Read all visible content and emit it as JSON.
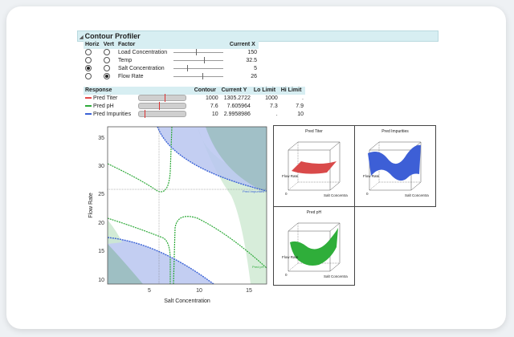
{
  "panel": {
    "title": "Contour Profiler"
  },
  "factor_table": {
    "headers": {
      "horiz": "Horiz",
      "vert": "Vert",
      "factor": "Factor",
      "current_x": "Current X"
    },
    "rows": [
      {
        "name": "Load Concentration",
        "value": "150",
        "horiz": false,
        "vert": false,
        "slider_fraction": 0.45
      },
      {
        "name": "Temp",
        "value": "32.5",
        "horiz": false,
        "vert": false,
        "slider_fraction": 0.62
      },
      {
        "name": "Salt Concentration",
        "value": "5",
        "horiz": true,
        "vert": false,
        "slider_fraction": 0.28
      },
      {
        "name": "Flow Rate",
        "value": "26",
        "horiz": false,
        "vert": true,
        "slider_fraction": 0.58
      }
    ]
  },
  "response_table": {
    "headers": {
      "response": "Response",
      "contour": "Contour",
      "current_y": "Current Y",
      "lo_limit": "Lo Limit",
      "hi_limit": "Hi Limit"
    },
    "rows": [
      {
        "name": "Pred Titer",
        "color": "#e34a4a",
        "contour": "1000",
        "current_y": "1305.2722",
        "lo": "1000",
        "hi": ".",
        "mark_fraction": 0.55
      },
      {
        "name": "Pred pH",
        "color": "#2faa3a",
        "contour": "7.6",
        "current_y": "7.605964",
        "lo": "7.3",
        "hi": "7.9",
        "mark_fraction": 0.42
      },
      {
        "name": "Pred Impurities",
        "color": "#3a62d6",
        "contour": "10",
        "current_y": "2.9958986",
        "lo": ".",
        "hi": "10",
        "mark_fraction": 0.12
      }
    ]
  },
  "contour_plot": {
    "xlabel": "Salt Concentration",
    "ylabel": "Flow Rate",
    "x_ticks": [
      "5",
      "10",
      "15"
    ],
    "y_ticks": [
      "35",
      "30",
      "25",
      "20",
      "15",
      "10"
    ],
    "x_range": [
      1,
      17
    ],
    "y_range": [
      9,
      37
    ],
    "crosshair": {
      "x": 5,
      "y": 26
    },
    "labels": {
      "pred_titer": "Pred Titer",
      "pred_ph": "Pred pH",
      "pred_impurities": "Pred Impurities"
    }
  },
  "surface_plots": [
    {
      "title": "Pred Titer",
      "color": "#d94a4a",
      "ylabel": "Flow Rate",
      "xlabel": "Salt Concentra",
      "zero": "0"
    },
    {
      "title": "Pred Impurities",
      "color": "#3d5fd6",
      "ylabel": "Flow Rate",
      "xlabel": "Salt Concentra",
      "zero": "0"
    },
    {
      "title": "Pred pH",
      "color": "#2fae3a",
      "ylabel": "Flow Rate",
      "xlabel": "Salt Concentra",
      "zero": "0"
    }
  ],
  "colors": {
    "header_bg": "#d7eef2",
    "impurity_fill": "#b9c6f0",
    "teal_fill": "#9ebfc3",
    "green_fill": "#cde9d1"
  }
}
